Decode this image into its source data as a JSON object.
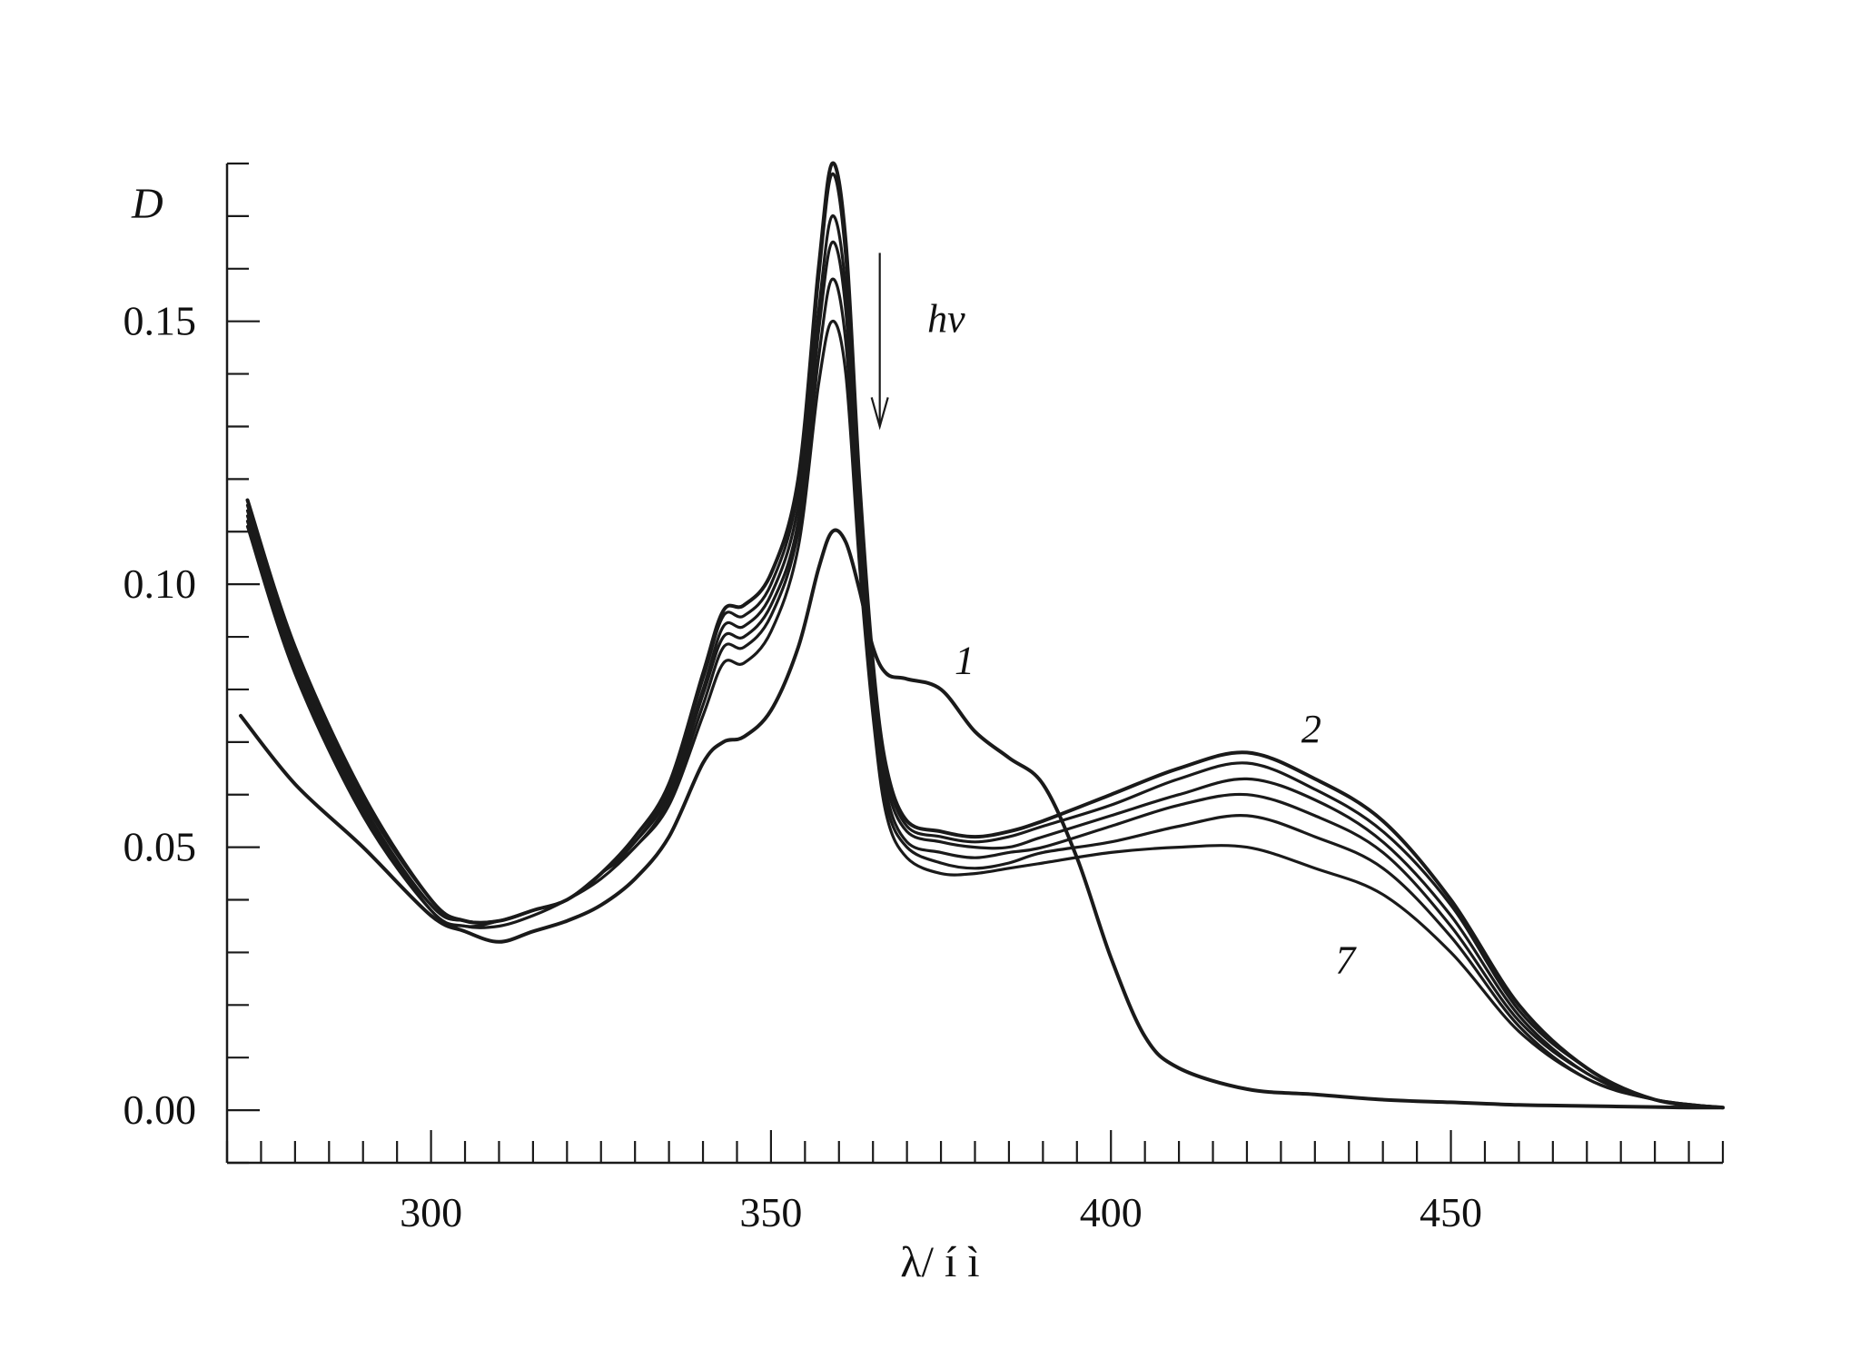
{
  "chart_data": {
    "type": "line",
    "xlabel": "λ/ í ì",
    "ylabel": "D",
    "xlim": [
      270,
      490
    ],
    "ylim": [
      -0.01,
      0.18
    ],
    "x_major_ticks": [
      300,
      350,
      400,
      450
    ],
    "x_tick_labels": [
      "300",
      "350",
      "400",
      "450"
    ],
    "x_minor_step": 5,
    "y_major_ticks": [
      0.0,
      0.05,
      0.1,
      0.15
    ],
    "y_tick_labels": [
      "0.00",
      "0.05",
      "0.10",
      "0.15"
    ],
    "y_minor_step": 0.01,
    "grid": false,
    "line_color": "#1a1a1a",
    "annotations": [
      {
        "text": "1",
        "x": 377,
        "y": 0.083
      },
      {
        "text": "2",
        "x": 428,
        "y": 0.07
      },
      {
        "text": "7",
        "x": 433,
        "y": 0.026
      },
      {
        "text": "hν",
        "x": 373,
        "y": 0.148
      }
    ],
    "arrow": {
      "x": 366,
      "y_start": 0.163,
      "y_end": 0.13
    },
    "series": [
      {
        "x": [
          272,
          280,
          290,
          300,
          305,
          310,
          315,
          320,
          325,
          330,
          335,
          340,
          343,
          346,
          350,
          354,
          357,
          359,
          361,
          363,
          365,
          367,
          370,
          375,
          380,
          385,
          390,
          395,
          400,
          405,
          410,
          420,
          430,
          440,
          450,
          460,
          470,
          480,
          485,
          490
        ],
        "values": [
          0.075,
          0.062,
          0.05,
          0.037,
          0.034,
          0.032,
          0.034,
          0.036,
          0.039,
          0.044,
          0.052,
          0.066,
          0.07,
          0.071,
          0.076,
          0.088,
          0.103,
          0.11,
          0.108,
          0.099,
          0.088,
          0.083,
          0.082,
          0.08,
          0.072,
          0.067,
          0.062,
          0.048,
          0.029,
          0.014,
          0.008,
          0.004,
          0.003,
          0.002,
          0.0015,
          0.001,
          0.0008,
          0.0006,
          0.0005,
          0.0005
        ]
      },
      {
        "x": [
          273,
          280,
          290,
          300,
          305,
          310,
          315,
          320,
          325,
          330,
          335,
          340,
          343,
          346,
          350,
          354,
          357,
          359,
          361,
          363,
          365,
          367,
          370,
          375,
          380,
          385,
          390,
          400,
          410,
          420,
          430,
          440,
          450,
          460,
          470,
          480,
          490
        ],
        "values": [
          0.116,
          0.088,
          0.06,
          0.04,
          0.036,
          0.036,
          0.038,
          0.04,
          0.045,
          0.052,
          0.062,
          0.083,
          0.095,
          0.096,
          0.102,
          0.12,
          0.16,
          0.18,
          0.165,
          0.12,
          0.085,
          0.065,
          0.055,
          0.053,
          0.052,
          0.053,
          0.055,
          0.06,
          0.065,
          0.068,
          0.063,
          0.055,
          0.04,
          0.02,
          0.008,
          0.002,
          0.0005
        ]
      },
      {
        "x": [
          273,
          280,
          290,
          300,
          305,
          310,
          315,
          320,
          325,
          330,
          335,
          340,
          343,
          346,
          350,
          354,
          357,
          359,
          361,
          363,
          365,
          367,
          370,
          375,
          380,
          385,
          390,
          400,
          410,
          420,
          430,
          440,
          450,
          460,
          470,
          480,
          490
        ],
        "values": [
          0.115,
          0.087,
          0.059,
          0.04,
          0.036,
          0.036,
          0.038,
          0.04,
          0.045,
          0.052,
          0.062,
          0.082,
          0.094,
          0.094,
          0.1,
          0.118,
          0.158,
          0.178,
          0.162,
          0.118,
          0.084,
          0.064,
          0.054,
          0.052,
          0.051,
          0.052,
          0.054,
          0.058,
          0.063,
          0.066,
          0.061,
          0.053,
          0.039,
          0.019,
          0.008,
          0.002,
          0.0005
        ]
      },
      {
        "x": [
          273,
          280,
          290,
          300,
          305,
          310,
          315,
          320,
          325,
          330,
          335,
          340,
          343,
          346,
          350,
          354,
          357,
          359,
          361,
          363,
          365,
          367,
          370,
          375,
          380,
          385,
          390,
          400,
          410,
          420,
          430,
          440,
          450,
          460,
          470,
          480,
          490
        ],
        "values": [
          0.114,
          0.086,
          0.058,
          0.039,
          0.036,
          0.036,
          0.038,
          0.04,
          0.045,
          0.051,
          0.061,
          0.08,
          0.092,
          0.092,
          0.098,
          0.115,
          0.152,
          0.17,
          0.156,
          0.114,
          0.082,
          0.062,
          0.053,
          0.051,
          0.05,
          0.05,
          0.052,
          0.056,
          0.06,
          0.063,
          0.059,
          0.051,
          0.037,
          0.018,
          0.007,
          0.002,
          0.0005
        ]
      },
      {
        "x": [
          273,
          280,
          290,
          300,
          305,
          310,
          315,
          320,
          325,
          330,
          335,
          340,
          343,
          346,
          350,
          354,
          357,
          359,
          361,
          363,
          365,
          367,
          370,
          375,
          380,
          385,
          390,
          400,
          410,
          420,
          430,
          440,
          450,
          460,
          470,
          480,
          490
        ],
        "values": [
          0.113,
          0.085,
          0.057,
          0.039,
          0.036,
          0.036,
          0.038,
          0.04,
          0.045,
          0.051,
          0.06,
          0.079,
          0.09,
          0.09,
          0.096,
          0.112,
          0.148,
          0.165,
          0.152,
          0.111,
          0.08,
          0.06,
          0.051,
          0.049,
          0.048,
          0.049,
          0.05,
          0.054,
          0.058,
          0.06,
          0.056,
          0.049,
          0.035,
          0.017,
          0.007,
          0.002,
          0.0005
        ]
      },
      {
        "x": [
          273,
          280,
          290,
          300,
          305,
          310,
          315,
          320,
          325,
          330,
          335,
          340,
          343,
          346,
          350,
          354,
          357,
          359,
          361,
          363,
          365,
          367,
          370,
          375,
          380,
          385,
          390,
          400,
          410,
          420,
          430,
          440,
          450,
          460,
          470,
          480,
          490
        ],
        "values": [
          0.112,
          0.084,
          0.057,
          0.038,
          0.035,
          0.036,
          0.038,
          0.04,
          0.045,
          0.05,
          0.059,
          0.077,
          0.088,
          0.088,
          0.094,
          0.11,
          0.143,
          0.158,
          0.146,
          0.108,
          0.078,
          0.058,
          0.05,
          0.047,
          0.046,
          0.047,
          0.049,
          0.051,
          0.054,
          0.056,
          0.052,
          0.046,
          0.033,
          0.016,
          0.006,
          0.002,
          0.0005
        ]
      },
      {
        "x": [
          273,
          280,
          290,
          300,
          305,
          310,
          315,
          320,
          325,
          330,
          335,
          340,
          343,
          346,
          350,
          354,
          357,
          359,
          361,
          363,
          365,
          367,
          370,
          375,
          380,
          385,
          390,
          400,
          410,
          420,
          430,
          440,
          450,
          460,
          470,
          480,
          490
        ],
        "values": [
          0.111,
          0.083,
          0.056,
          0.038,
          0.035,
          0.035,
          0.037,
          0.04,
          0.044,
          0.05,
          0.058,
          0.075,
          0.085,
          0.085,
          0.091,
          0.107,
          0.138,
          0.15,
          0.14,
          0.104,
          0.075,
          0.056,
          0.048,
          0.045,
          0.045,
          0.046,
          0.047,
          0.049,
          0.05,
          0.05,
          0.046,
          0.041,
          0.03,
          0.015,
          0.006,
          0.002,
          0.0005
        ]
      }
    ]
  }
}
